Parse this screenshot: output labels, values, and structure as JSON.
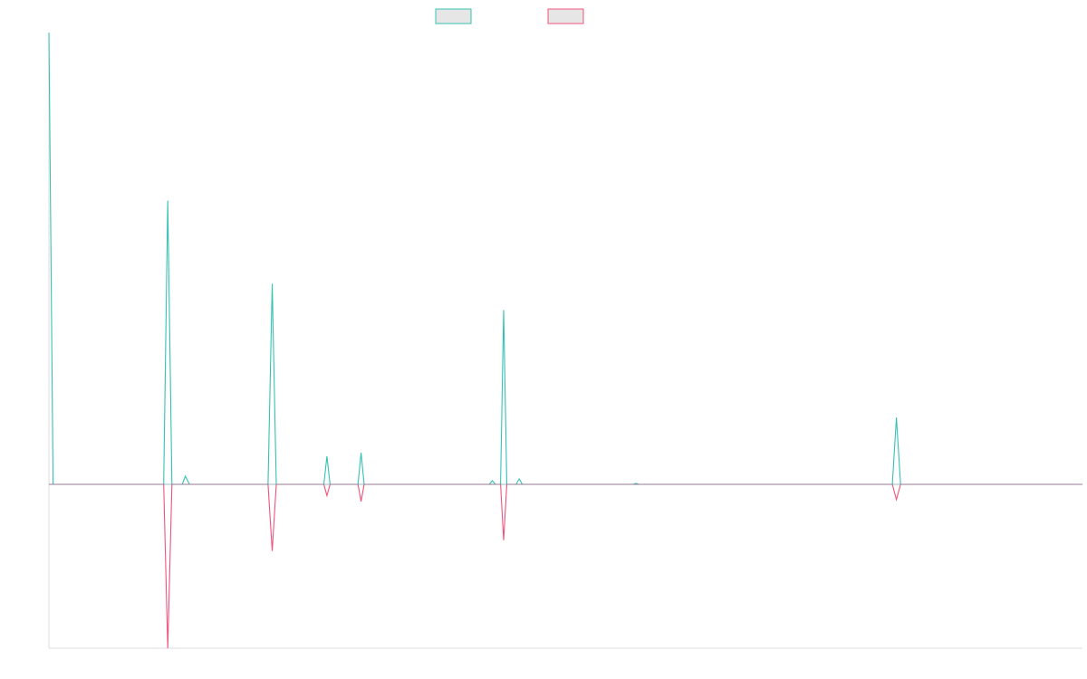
{
  "chart_data": {
    "type": "line",
    "title": "",
    "xlabel": "",
    "ylabel": "",
    "grid": false,
    "legend": {
      "placement": "top-center",
      "entries": [
        {
          "name": "",
          "stroke": "#36c1b3",
          "fill": "#e6e6e6"
        },
        {
          "name": "",
          "stroke": "#f0537a",
          "fill": "#e6e6e6"
        }
      ]
    },
    "x": [
      0,
      5,
      10,
      15,
      20,
      25,
      30,
      35,
      40,
      45,
      50,
      55,
      60,
      65,
      70,
      75,
      80,
      85,
      90,
      95,
      100
    ],
    "xlim": [
      0,
      100
    ],
    "ylim": [
      -0.364,
      1
    ],
    "series": [
      {
        "stroke": "#36c1b3",
        "points": [
          [
            0,
            1
          ],
          [
            0.4,
            0
          ],
          [
            11.1,
            0
          ],
          [
            11.5,
            0.628
          ],
          [
            11.9,
            0
          ],
          [
            12.9,
            0
          ],
          [
            13.2,
            0.018
          ],
          [
            13.6,
            0
          ],
          [
            21.2,
            0
          ],
          [
            21.6,
            0.444
          ],
          [
            22.0,
            0
          ],
          [
            26.6,
            0
          ],
          [
            26.9,
            0.062
          ],
          [
            27.2,
            0
          ],
          [
            29.9,
            0
          ],
          [
            30.2,
            0.07
          ],
          [
            30.5,
            0
          ],
          [
            42.6,
            0
          ],
          [
            42.9,
            0.008
          ],
          [
            43.2,
            0
          ],
          [
            43.7,
            0
          ],
          [
            44.0,
            0.386
          ],
          [
            44.3,
            0
          ],
          [
            45.2,
            0
          ],
          [
            45.5,
            0.012
          ],
          [
            45.8,
            0
          ],
          [
            56.5,
            0
          ],
          [
            56.8,
            0.002
          ],
          [
            57.1,
            0
          ],
          [
            81.6,
            0
          ],
          [
            82.0,
            0.148
          ],
          [
            82.4,
            0
          ],
          [
            100,
            0
          ]
        ]
      },
      {
        "stroke": "#f0537a",
        "points": [
          [
            0,
            0
          ],
          [
            11.1,
            0
          ],
          [
            11.5,
            -0.364
          ],
          [
            11.9,
            0
          ],
          [
            21.2,
            0
          ],
          [
            21.6,
            -0.148
          ],
          [
            22.0,
            0
          ],
          [
            26.6,
            0
          ],
          [
            26.9,
            -0.025
          ],
          [
            27.2,
            0
          ],
          [
            29.9,
            0
          ],
          [
            30.2,
            -0.038
          ],
          [
            30.5,
            0
          ],
          [
            43.7,
            0
          ],
          [
            44.0,
            -0.124
          ],
          [
            44.3,
            0
          ],
          [
            81.6,
            0
          ],
          [
            82.0,
            -0.034
          ],
          [
            82.4,
            0
          ],
          [
            100,
            0
          ]
        ]
      }
    ]
  }
}
